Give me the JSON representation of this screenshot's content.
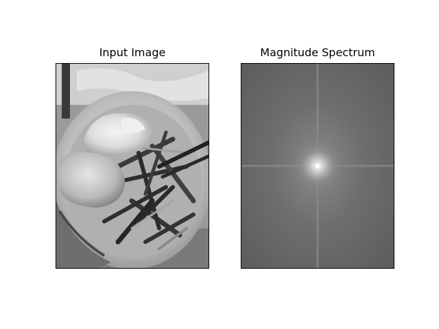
{
  "figure": {
    "left_panel": {
      "title": "Input Image",
      "image_description": "grayscale photo of a bowl of noodles with fried eggs, stir-fried strips and chopsticks"
    },
    "right_panel": {
      "title": "Magnitude Spectrum",
      "image_description": "2D Fourier magnitude spectrum with a bright center and horizontal and vertical cross lines"
    }
  }
}
